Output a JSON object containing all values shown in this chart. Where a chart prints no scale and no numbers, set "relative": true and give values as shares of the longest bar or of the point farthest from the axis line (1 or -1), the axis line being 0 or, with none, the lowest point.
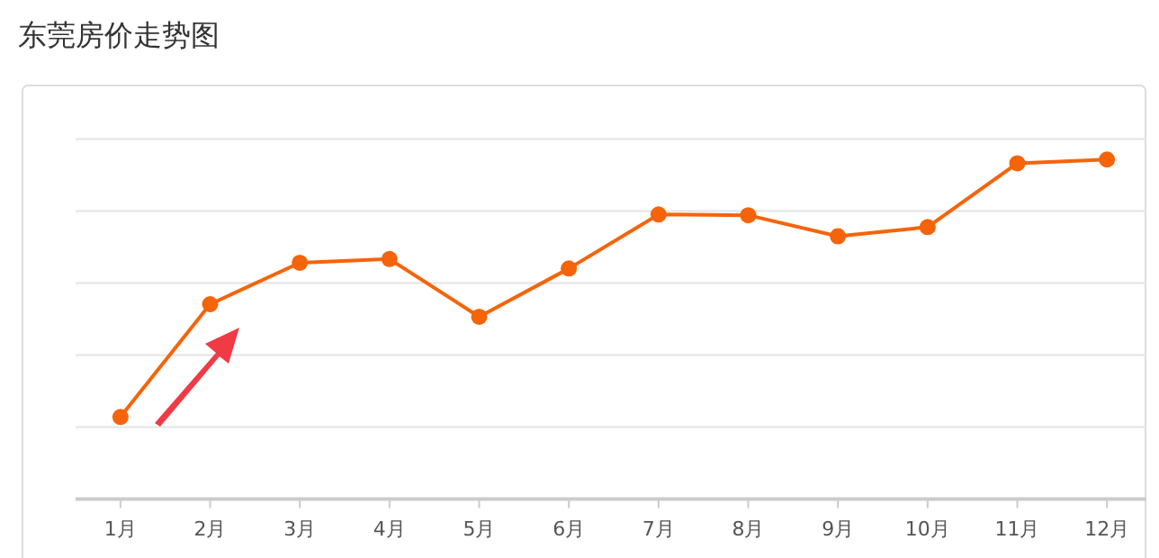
{
  "chart_data": {
    "type": "line",
    "title": "东莞房价走势图",
    "relative": true,
    "grid": "y",
    "marker": "circle",
    "line_style": "solid",
    "categories": [
      "1月",
      "2月",
      "3月",
      "4月",
      "5月",
      "6月",
      "7月",
      "8月",
      "9月",
      "10月",
      "11月",
      "12月"
    ],
    "series": [
      {
        "color": "#f5640a",
        "values": [
          0.242,
          0.574,
          0.696,
          0.707,
          0.537,
          0.679,
          0.838,
          0.836,
          0.774,
          0.801,
          0.989,
          1.0
        ]
      }
    ]
  }
}
